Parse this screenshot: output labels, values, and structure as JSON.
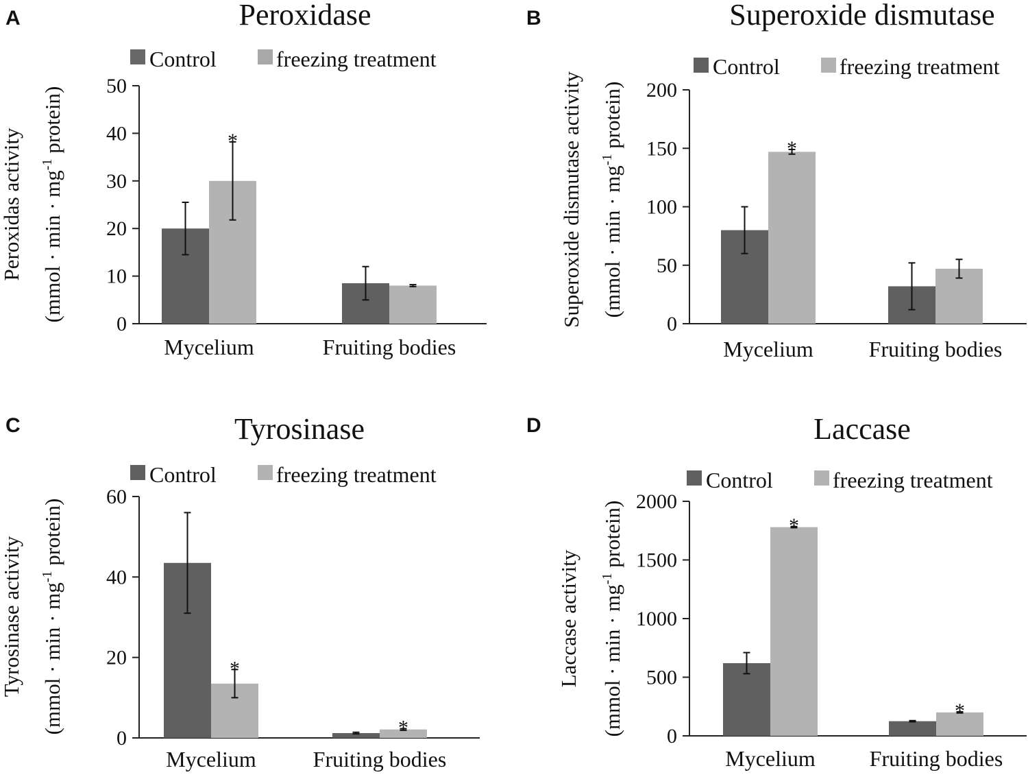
{
  "colors": {
    "control": "#606060",
    "freezing": "#b3b3b3",
    "control_swatch_A": "#686868",
    "freezing_swatch_A": "#a8a8a8"
  },
  "chart_data": [
    {
      "panel": "A",
      "type": "bar",
      "title": "Peroxidase",
      "ylabel_line1": "Peroxidas activity",
      "ylabel_line2_pre": "(mmol · min · mg",
      "ylabel_sup": "-1",
      "ylabel_line2_post": " protein)",
      "legend": [
        "Control",
        "freezing treatment"
      ],
      "categories": [
        "Mycelium",
        "Fruiting bodies"
      ],
      "ylim": [
        0,
        50
      ],
      "yticks": [
        0,
        10,
        20,
        30,
        40,
        50
      ],
      "series": [
        {
          "name": "Control",
          "values": [
            20,
            8.5
          ],
          "errors": [
            5.5,
            3.5
          ]
        },
        {
          "name": "freezing treatment",
          "values": [
            30,
            8
          ],
          "errors": [
            8.2,
            0.2
          ]
        }
      ],
      "significance": [
        {
          "series": 1,
          "category": 0,
          "label": "*"
        }
      ]
    },
    {
      "panel": "B",
      "type": "bar",
      "title": "Superoxide dismutase",
      "ylabel_line1": "Superoxide dismutase activity",
      "ylabel_line2_pre": "(mmol · min · mg",
      "ylabel_sup": "-1",
      "ylabel_line2_post": " protein)",
      "legend": [
        "Control",
        "freezing treatment"
      ],
      "categories": [
        "Mycelium",
        "Fruiting bodies"
      ],
      "ylim": [
        0,
        200
      ],
      "yticks": [
        0,
        50,
        100,
        150,
        200
      ],
      "series": [
        {
          "name": "Control",
          "values": [
            80,
            32
          ],
          "errors": [
            20,
            20
          ]
        },
        {
          "name": "freezing treatment",
          "values": [
            147,
            47
          ],
          "errors": [
            2,
            8
          ]
        }
      ],
      "significance": [
        {
          "series": 1,
          "category": 0,
          "label": "*"
        }
      ]
    },
    {
      "panel": "C",
      "type": "bar",
      "title": "Tyrosinase",
      "ylabel_line1": "Tyrosinase activity",
      "ylabel_line2_pre": "(mmol · min · mg",
      "ylabel_sup": "-1",
      "ylabel_line2_post": " protein)",
      "legend": [
        "Control",
        "freezing treatment"
      ],
      "categories": [
        "Mycelium",
        "Fruiting bodies"
      ],
      "ylim": [
        0,
        60
      ],
      "yticks": [
        0,
        20,
        40,
        60
      ],
      "series": [
        {
          "name": "Control",
          "values": [
            43.5,
            1.2
          ],
          "errors": [
            12.5,
            0.2
          ]
        },
        {
          "name": "freezing treatment",
          "values": [
            13.5,
            2.1
          ],
          "errors": [
            3.5,
            0.2
          ]
        }
      ],
      "significance": [
        {
          "series": 1,
          "category": 0,
          "label": "*"
        },
        {
          "series": 1,
          "category": 1,
          "label": "*"
        }
      ]
    },
    {
      "panel": "D",
      "type": "bar",
      "title": "Laccase",
      "ylabel_line1": "Laccase activity",
      "ylabel_line2_pre": "(mmol · min · mg",
      "ylabel_sup": "-1",
      "ylabel_line2_post": " protein)",
      "legend": [
        "Control",
        "freezing treatment"
      ],
      "categories": [
        "Mycelium",
        "Fruiting bodies"
      ],
      "ylim": [
        0,
        2000
      ],
      "yticks": [
        0,
        500,
        1000,
        1500,
        2000
      ],
      "series": [
        {
          "name": "Control",
          "values": [
            620,
            125
          ],
          "errors": [
            90,
            5
          ]
        },
        {
          "name": "freezing treatment",
          "values": [
            1780,
            200
          ],
          "errors": [
            5,
            5
          ]
        }
      ],
      "significance": [
        {
          "series": 1,
          "category": 0,
          "label": "*"
        },
        {
          "series": 1,
          "category": 1,
          "label": "*"
        }
      ]
    }
  ]
}
